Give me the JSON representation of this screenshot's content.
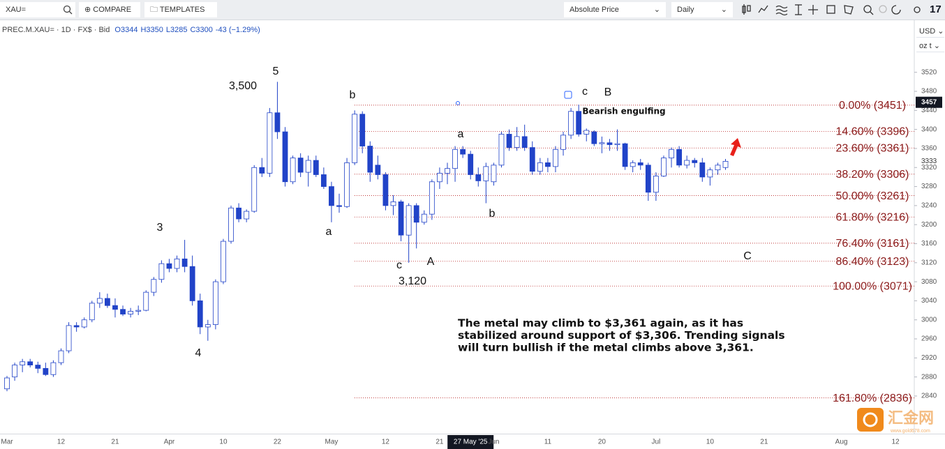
{
  "toolbar": {
    "symbol": "XAU=",
    "compare": "COMPARE",
    "templates": "TEMPLATES",
    "price_mode": "Absolute Price",
    "interval": "Daily"
  },
  "legend": {
    "symbol": "PREC.M.XAU= · 1D · FX$ · Bid",
    "values": [
      "O3344",
      "H3350",
      "L3285",
      "C3300",
      "-43 (−1.29%)"
    ]
  },
  "axis_controls": {
    "currency": "USD",
    "unit": "oz t"
  },
  "watermark": {
    "name": "汇金网",
    "url": "www.gold678.com"
  },
  "chart_data": {
    "type": "candlestick",
    "up_color": "#ffffff",
    "down_color": "#2143c8",
    "outline_color": "#2143c8",
    "grid": false,
    "categories": [
      "Mar",
      null,
      null,
      null,
      null,
      null,
      null,
      "12",
      null,
      null,
      null,
      null,
      null,
      null,
      "21",
      null,
      null,
      null,
      null,
      null,
      null,
      "Apr",
      null,
      null,
      null,
      null,
      null,
      null,
      "10",
      null,
      null,
      null,
      null,
      null,
      null,
      "22",
      null,
      null,
      null,
      null,
      null,
      null,
      "May",
      null,
      null,
      null,
      null,
      null,
      null,
      "12",
      null,
      null,
      null,
      null,
      null,
      null,
      "21",
      null,
      null,
      null,
      "27 May '25",
      null,
      null,
      "Jun",
      null,
      null,
      null,
      null,
      null,
      null,
      "11",
      null,
      null,
      null,
      null,
      null,
      null,
      "20",
      null,
      null,
      null,
      null,
      null,
      null,
      "Jul",
      null,
      null,
      null,
      null,
      null,
      null,
      "10",
      null,
      null,
      null,
      null,
      null,
      null,
      "21",
      null,
      null,
      null,
      null,
      null,
      null,
      null,
      null,
      null,
      "Aug",
      null,
      null,
      null,
      null,
      null,
      null,
      "12",
      null,
      null
    ],
    "open": [
      2855,
      2880,
      2905,
      2912,
      2905,
      2898,
      2885,
      2910,
      2935,
      2988,
      2985,
      3000,
      3035,
      3045,
      3030,
      3022,
      3012,
      3018,
      3020,
      3058,
      3085,
      3118,
      3108,
      3128,
      3112,
      3040,
      2985,
      2990,
      3080,
      3165,
      3235,
      3212,
      3228,
      3320,
      3308,
      3435,
      3395,
      3290,
      3340,
      3310,
      3335,
      3305,
      3280,
      3240,
      3238,
      3330,
      3432,
      3365,
      3325,
      3305,
      3240,
      3248,
      3178,
      3240,
      3205,
      3222,
      3290,
      3308,
      3318,
      3358,
      3348,
      3305,
      3292,
      3290,
      3325,
      3390,
      3362,
      3385,
      3362,
      3312,
      3330,
      3322,
      3358,
      3388,
      3438,
      3390,
      3395,
      3370,
      3372,
      3368,
      3370,
      3322,
      3330,
      3325,
      3268,
      3302,
      3340,
      3358,
      3325,
      3335,
      3330,
      3300,
      3315,
      3320,
      null,
      null,
      null,
      null,
      null,
      null,
      null,
      null,
      null,
      null,
      null,
      null,
      null,
      null,
      null,
      null,
      null,
      null,
      null,
      null,
      null,
      null,
      null,
      null
    ],
    "high": [
      2882,
      2910,
      2918,
      2918,
      2912,
      2910,
      2915,
      2940,
      2995,
      2995,
      3005,
      3040,
      3058,
      3055,
      3045,
      3030,
      3025,
      3030,
      3062,
      3090,
      3125,
      3128,
      3135,
      3168,
      3135,
      3055,
      3000,
      3085,
      3170,
      3240,
      3245,
      3232,
      3325,
      3340,
      3445,
      3500,
      3405,
      3345,
      3350,
      3345,
      3345,
      3320,
      3290,
      3265,
      3340,
      3440,
      3438,
      3375,
      3345,
      3310,
      3262,
      3252,
      3245,
      3245,
      3230,
      3295,
      3320,
      3330,
      3365,
      3365,
      3355,
      3320,
      3330,
      3330,
      3395,
      3400,
      3405,
      3410,
      3375,
      3340,
      3340,
      3365,
      3395,
      3445,
      3452,
      3402,
      3398,
      3385,
      3380,
      3400,
      3372,
      3335,
      3338,
      3330,
      3310,
      3345,
      3362,
      3365,
      3345,
      3340,
      3340,
      3320,
      3330,
      3338,
      null,
      null,
      null,
      null,
      null,
      null,
      null,
      null,
      null,
      null,
      null,
      null,
      null,
      null,
      null,
      null,
      null,
      null,
      null,
      null,
      null,
      null,
      null,
      null
    ],
    "low": [
      2850,
      2872,
      2890,
      2900,
      2888,
      2882,
      2880,
      2905,
      2930,
      2975,
      2982,
      2995,
      3025,
      3025,
      3005,
      3008,
      3005,
      3010,
      3018,
      3050,
      3078,
      3100,
      3100,
      3100,
      3030,
      2970,
      2956,
      2980,
      3075,
      3160,
      3205,
      3205,
      3225,
      3300,
      3300,
      3380,
      3280,
      3285,
      3300,
      3280,
      3300,
      3275,
      3205,
      3225,
      3235,
      3325,
      3350,
      3290,
      3295,
      3230,
      3220,
      3165,
      3120,
      3150,
      3200,
      3210,
      3275,
      3285,
      3290,
      3340,
      3295,
      3280,
      3245,
      3282,
      3320,
      3355,
      3355,
      3355,
      3305,
      3305,
      3310,
      3310,
      3345,
      3380,
      3385,
      3375,
      3365,
      3350,
      3355,
      3355,
      3315,
      3310,
      3315,
      3250,
      3250,
      3300,
      3320,
      3320,
      3318,
      3320,
      3290,
      3282,
      3305,
      3315,
      null,
      null,
      null,
      null,
      null,
      null,
      null,
      null,
      null,
      null,
      null,
      null,
      null,
      null,
      null,
      null,
      null,
      null,
      null,
      null,
      null,
      null,
      null,
      null
    ],
    "close": [
      2878,
      2905,
      2912,
      2905,
      2898,
      2885,
      2910,
      2935,
      2988,
      2985,
      3000,
      3035,
      3045,
      3030,
      3022,
      3012,
      3018,
      3020,
      3058,
      3085,
      3118,
      3108,
      3128,
      3112,
      3040,
      2985,
      2990,
      3080,
      3165,
      3235,
      3212,
      3228,
      3320,
      3308,
      3435,
      3395,
      3290,
      3340,
      3310,
      3335,
      3305,
      3280,
      3240,
      3238,
      3330,
      3432,
      3365,
      3310,
      3305,
      3240,
      3248,
      3178,
      3240,
      3205,
      3222,
      3290,
      3308,
      3318,
      3358,
      3348,
      3305,
      3292,
      3322,
      3325,
      3390,
      3362,
      3385,
      3362,
      3312,
      3330,
      3322,
      3358,
      3388,
      3438,
      3390,
      3398,
      3370,
      3372,
      3368,
      3370,
      3322,
      3330,
      3325,
      3268,
      3302,
      3340,
      3358,
      3325,
      3335,
      3330,
      3300,
      3315,
      3325,
      3333,
      null,
      null,
      null,
      null,
      null,
      null,
      null,
      null,
      null,
      null,
      null,
      null,
      null,
      null,
      null,
      null,
      null,
      null,
      null,
      null,
      null,
      null,
      null,
      null
    ],
    "ylim": [
      2760,
      3630
    ],
    "yticks": [
      2840,
      2880,
      2920,
      2960,
      3000,
      3040,
      3080,
      3120,
      3160,
      3200,
      3240,
      3280,
      3320,
      3360,
      3400,
      3440,
      3480,
      3520
    ],
    "last_price": 3457,
    "cursor_price": 3333,
    "fib_levels": [
      {
        "value": 3451,
        "label": "0.00% (3451)"
      },
      {
        "value": 3396,
        "label": "14.60% (3396)"
      },
      {
        "value": 3361,
        "label": "23.60% (3361)"
      },
      {
        "value": 3306,
        "label": "38.20% (3306)"
      },
      {
        "value": 3261,
        "label": "50.00% (3261)"
      },
      {
        "value": 3216,
        "label": "61.80% (3216)"
      },
      {
        "value": 3161,
        "label": "76.40% (3161)"
      },
      {
        "value": 3123,
        "label": "86.40% (3123)"
      },
      {
        "value": 3071,
        "label": "100.00% (3071)"
      },
      {
        "value": 2836,
        "label": "161.80% (2836)"
      }
    ],
    "annotations": [
      "5",
      "3,500",
      "3",
      "4",
      "a",
      "b",
      "c",
      "3,120",
      "A",
      "a",
      "b",
      "c",
      "B",
      "Bearish engulfing",
      "C"
    ],
    "commentary": [
      "The metal may climb to $3,361 again, as it has",
      "stabilized around support of $3,306. Trending signals",
      "will turn bullish if the metal climbs above 3,361."
    ]
  }
}
